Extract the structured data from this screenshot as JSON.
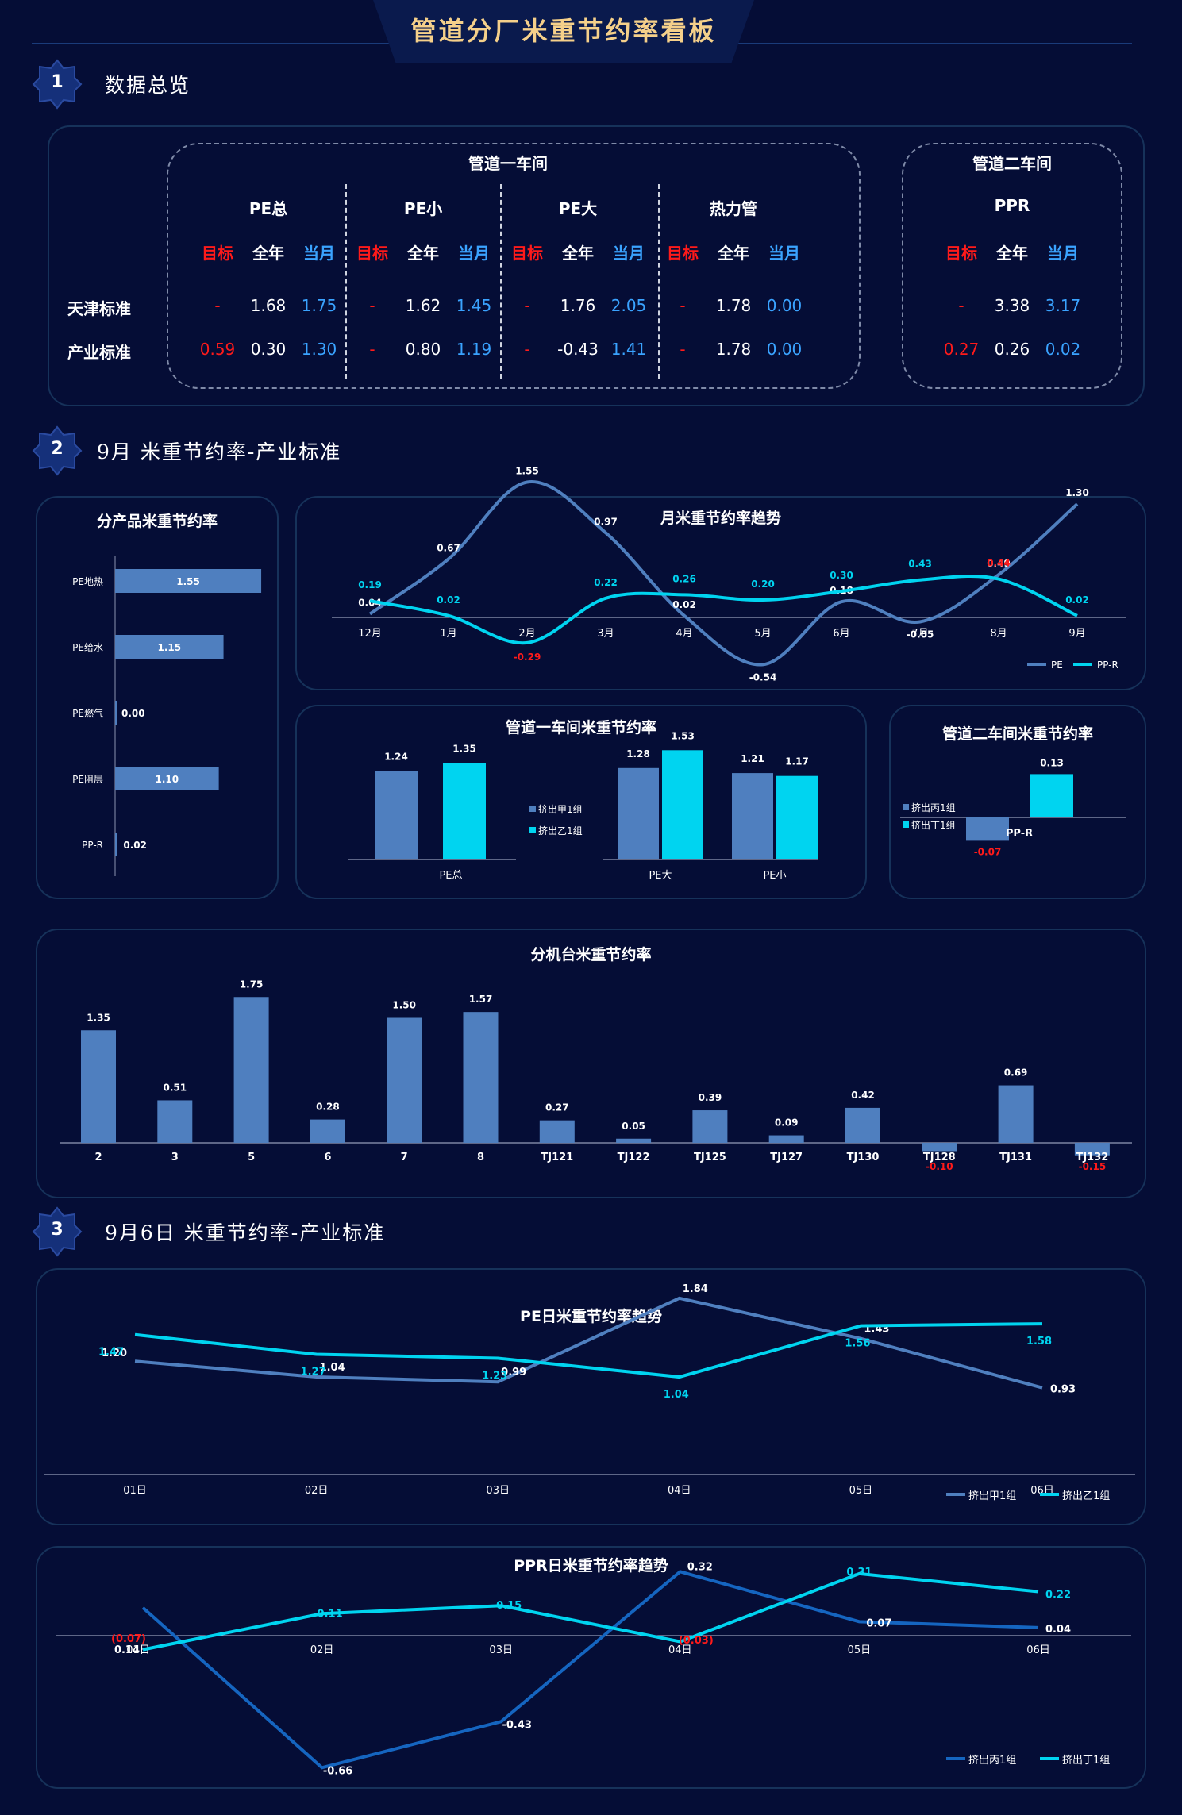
{
  "page": {
    "title": "管道分厂米重节约率看板"
  },
  "sections": [
    {
      "num": "1",
      "label": "数据总览"
    },
    {
      "num": "2",
      "label": "9月 米重节约率-产业标准"
    },
    {
      "num": "3",
      "label": "9月6日 米重节约率-产业标准"
    }
  ],
  "overview": {
    "workshop1": "管道一车间",
    "workshop2": "管道二车间",
    "row_labels": [
      "天津标准",
      "产业标准"
    ],
    "col_headers": [
      "目标",
      "全年",
      "当月"
    ],
    "products": [
      {
        "name": "PE总",
        "rows": [
          [
            "-",
            "1.68",
            "1.75"
          ],
          [
            "0.59",
            "0.30",
            "1.30"
          ]
        ]
      },
      {
        "name": "PE小",
        "rows": [
          [
            "-",
            "1.62",
            "1.45"
          ],
          [
            "-",
            "0.80",
            "1.19"
          ]
        ]
      },
      {
        "name": "PE大",
        "rows": [
          [
            "-",
            "1.76",
            "2.05"
          ],
          [
            "-",
            "-0.43",
            "1.41"
          ]
        ]
      },
      {
        "name": "热力管",
        "rows": [
          [
            "-",
            "1.78",
            "0.00"
          ],
          [
            "-",
            "1.78",
            "0.00"
          ]
        ]
      },
      {
        "name": "PPR",
        "rows": [
          [
            "-",
            "3.38",
            "3.17"
          ],
          [
            "0.27",
            "0.26",
            "0.02"
          ]
        ]
      }
    ]
  },
  "colors": {
    "pe_blue": "#4f7fbf",
    "cyan": "#00d4f0",
    "red": "#ff1a1a",
    "target_red": "#ff1a1a",
    "month_blue": "#3aa3ff",
    "dark_line": "#1565c0"
  },
  "chart_data": [
    {
      "id": "product",
      "type": "bar",
      "orientation": "horizontal",
      "title": "分产品米重节约率",
      "categories": [
        "PE地热",
        "PE给水",
        "PE燃气",
        "PE阻层",
        "PP-R"
      ],
      "values": [
        1.55,
        1.15,
        0.0,
        1.1,
        0.02
      ],
      "value_labels": [
        "1.55",
        "1.15",
        "0.00",
        "1.10",
        "0.02"
      ],
      "xlim": [
        0,
        1.6
      ]
    },
    {
      "id": "monthly",
      "type": "line",
      "title": "月米重节约率趋势",
      "categories": [
        "12月",
        "1月",
        "2月",
        "3月",
        "4月",
        "5月",
        "6月",
        "7月",
        "8月",
        "9月"
      ],
      "series": [
        {
          "name": "PE",
          "values": [
            0.04,
            0.67,
            1.55,
            0.97,
            0.02,
            -0.54,
            0.18,
            -0.05,
            0.49,
            1.3
          ],
          "labels": [
            "0.04",
            "0.67",
            "1.55",
            "0.97",
            "0.02",
            "-0.54",
            "0.18",
            "-0.05",
            "0.49",
            "1.30"
          ]
        },
        {
          "name": "PP-R",
          "values": [
            0.19,
            0.02,
            -0.29,
            0.22,
            0.26,
            0.2,
            0.3,
            0.43,
            0.44,
            0.02
          ],
          "labels": [
            "0.19",
            "0.02",
            "-0.29",
            "0.22",
            "0.26",
            "0.20",
            "0.30",
            "0.43",
            "0.44",
            "0.02"
          ]
        }
      ],
      "ylim": [
        -0.7,
        1.7
      ]
    },
    {
      "id": "ws1",
      "type": "bar",
      "title": "管道一车间米重节约率",
      "categories": [
        "PE总",
        "PE大",
        "PE小"
      ],
      "series": [
        {
          "name": "挤出甲1组",
          "values": [
            1.24,
            1.28,
            1.21
          ]
        },
        {
          "name": "挤出乙1组",
          "values": [
            1.35,
            1.53,
            1.17
          ]
        }
      ],
      "ylim": [
        0,
        1.6
      ]
    },
    {
      "id": "ws2",
      "type": "bar",
      "title": "管道二车间米重节约率",
      "categories": [
        "PP-R"
      ],
      "series": [
        {
          "name": "挤出丙1组",
          "values": [
            -0.07
          ]
        },
        {
          "name": "挤出丁1组",
          "values": [
            0.13
          ]
        }
      ],
      "ylim": [
        -0.1,
        0.15
      ]
    },
    {
      "id": "machines",
      "type": "bar",
      "title": "分机台米重节约率",
      "categories": [
        "2",
        "3",
        "5",
        "6",
        "7",
        "8",
        "TJ121",
        "TJ122",
        "TJ125",
        "TJ127",
        "TJ130",
        "TJ128",
        "TJ131",
        "TJ132"
      ],
      "values": [
        1.35,
        0.51,
        1.75,
        0.28,
        1.5,
        1.57,
        0.27,
        0.05,
        0.39,
        0.09,
        0.42,
        -0.1,
        0.69,
        -0.15
      ],
      "value_labels": [
        "1.35",
        "0.51",
        "1.75",
        "0.28",
        "1.50",
        "1.57",
        "0.27",
        "0.05",
        "0.39",
        "0.09",
        "0.42",
        "-0.10",
        "0.69",
        "-0.15"
      ],
      "ylim": [
        -0.2,
        1.8
      ]
    },
    {
      "id": "pe_daily",
      "type": "line",
      "title": "PE日米重节约率趋势",
      "categories": [
        "01日",
        "02日",
        "03日",
        "04日",
        "05日",
        "06日"
      ],
      "series": [
        {
          "name": "挤出甲1组",
          "values": [
            1.2,
            1.04,
            0.99,
            1.84,
            1.43,
            0.93
          ],
          "labels": [
            "1.20",
            "1.04",
            "0.99",
            "1.84",
            "1.43",
            "0.93"
          ]
        },
        {
          "name": "挤出乙1组",
          "values": [
            1.47,
            1.27,
            1.23,
            1.04,
            1.56,
            1.58
          ],
          "labels": [
            "1.47",
            "1.27",
            "1.23",
            "1.04",
            "1.56",
            "1.58"
          ]
        }
      ],
      "ylim": [
        0,
        2.1
      ]
    },
    {
      "id": "ppr_daily",
      "type": "line",
      "title": "PPR日米重节约率趋势",
      "categories": [
        "01日",
        "02日",
        "03日",
        "04日",
        "05日",
        "06日"
      ],
      "series": [
        {
          "name": "挤出丙1组",
          "values": [
            0.14,
            -0.66,
            -0.43,
            0.32,
            0.07,
            0.04
          ],
          "labels": [
            "0.14",
            "-0.66",
            "-0.43",
            "0.32",
            "0.07",
            "0.04"
          ]
        },
        {
          "name": "挤出丁1组",
          "values": [
            -0.07,
            0.11,
            0.15,
            -0.03,
            0.31,
            0.22
          ],
          "labels": [
            "(0.07)",
            "0.11",
            "0.15",
            "(0.03)",
            "0.31",
            "0.22"
          ]
        }
      ],
      "ylim": [
        -0.8,
        0.4
      ]
    }
  ]
}
